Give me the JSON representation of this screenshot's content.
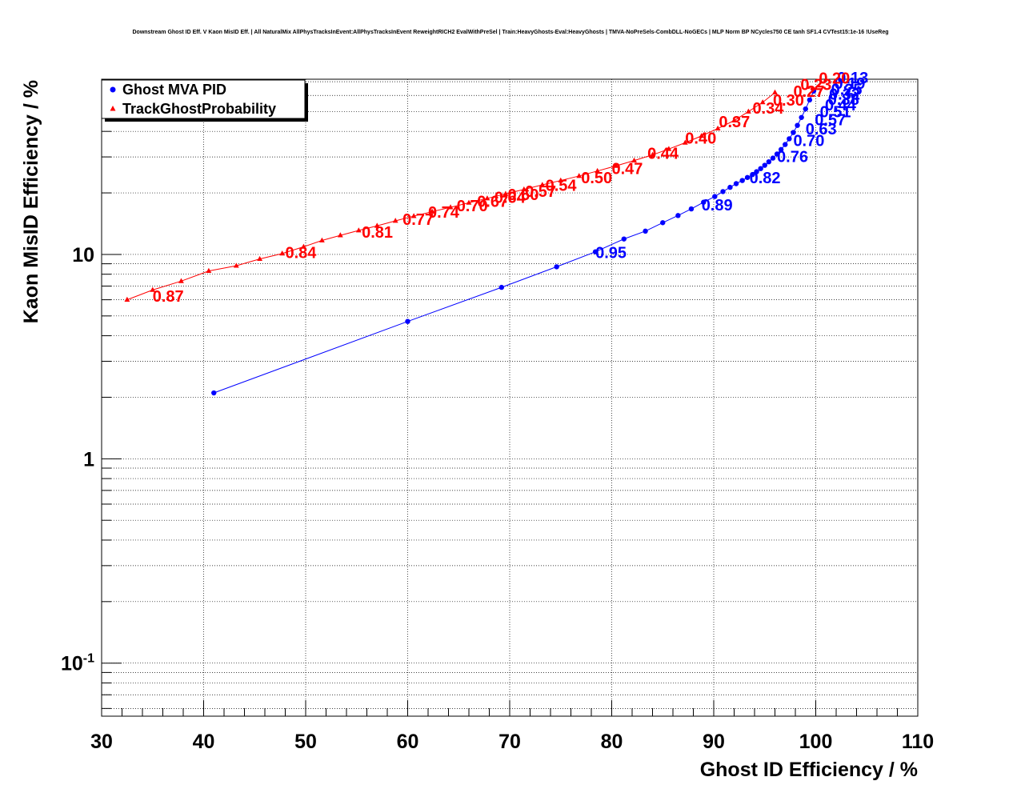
{
  "chart_data": {
    "type": "scatter",
    "title": "Downstream Ghost ID Eff. V Kaon MisID Eff. | All NaturalMix AllPhysTracksInEvent:AllPhysTracksInEvent ReweightRICH2 EvalWithPreSel | Train:HeavyGhosts-Eval:HeavyGhosts | TMVA-NoPreSels-CombDLL-NoGECs | MLP Norm BP NCycles750 CE tanh SF1.4 CVTest15:1e-16 !UseReg",
    "xlabel": "Ghost ID Efficiency / %",
    "ylabel": "Kaon MisID Efficiency / %",
    "xlim": [
      30,
      110
    ],
    "ylim": [
      0.055,
      72
    ],
    "ylog": true,
    "grid": true,
    "legend_position": "top-left",
    "x_ticks": [
      "30",
      "40",
      "50",
      "60",
      "70",
      "80",
      "90",
      "100",
      "110"
    ],
    "y_ticks": [
      {
        "value": 10,
        "base": "10",
        "exp": ""
      },
      {
        "value": 1,
        "base": "1",
        "exp": ""
      },
      {
        "value": 0.1,
        "base": "10",
        "exp": "-1"
      }
    ],
    "series": [
      {
        "name": "Ghost MVA PID",
        "color": "#0000ff",
        "marker": "circle",
        "x": [
          41.0,
          60.0,
          69.2,
          74.6,
          78.4,
          81.2,
          83.3,
          85.0,
          86.5,
          87.8,
          89.0,
          90.1,
          90.9,
          91.6,
          92.2,
          92.8,
          93.3,
          93.8,
          94.2,
          94.6,
          95.0,
          95.4,
          95.8,
          96.2,
          96.6,
          97.0,
          97.4,
          97.8,
          98.2,
          98.6,
          99.0,
          99.4,
          99.8
        ],
        "y": [
          2.1,
          4.7,
          6.9,
          8.7,
          10.3,
          11.9,
          13.0,
          14.3,
          15.5,
          16.7,
          18.0,
          19.2,
          20.3,
          21.3,
          22.2,
          23.0,
          23.8,
          24.6,
          25.4,
          26.3,
          27.3,
          28.4,
          29.6,
          31.0,
          32.6,
          34.5,
          36.8,
          39.5,
          42.8,
          46.8,
          51.5,
          57.0,
          63.0
        ],
        "annotations": [
          {
            "x": 78.4,
            "y": 10.3,
            "label": "0.95"
          },
          {
            "x": 88.8,
            "y": 17.6,
            "label": "0.89"
          },
          {
            "x": 93.5,
            "y": 24.0,
            "label": "0.82"
          },
          {
            "x": 96.2,
            "y": 30.5,
            "label": "0.76"
          },
          {
            "x": 97.8,
            "y": 36.5,
            "label": "0.70"
          },
          {
            "x": 99.0,
            "y": 41.5,
            "label": "0.63"
          },
          {
            "x": 99.9,
            "y": 46.0,
            "label": "0.57"
          },
          {
            "x": 100.4,
            "y": 50.5,
            "label": "0.51"
          },
          {
            "x": 100.9,
            "y": 54.5,
            "label": "0.44"
          },
          {
            "x": 101.2,
            "y": 58.0,
            "label": "0.38"
          },
          {
            "x": 101.3,
            "y": 61.5,
            "label": "0.32"
          },
          {
            "x": 101.5,
            "y": 65.0,
            "label": "0.25"
          },
          {
            "x": 101.8,
            "y": 69.5,
            "label": "0.19"
          },
          {
            "x": 102.1,
            "y": 74.0,
            "label": "0.13"
          }
        ]
      },
      {
        "name": "TrackGhostProbability",
        "color": "#ff0000",
        "marker": "triangle",
        "x": [
          32.5,
          35.0,
          37.8,
          40.5,
          43.2,
          45.5,
          47.7,
          49.8,
          51.6,
          53.4,
          55.2,
          57.0,
          58.8,
          60.6,
          62.4,
          64.2,
          66.0,
          67.8,
          69.6,
          71.4,
          73.2,
          75.0,
          76.8,
          78.6,
          80.4,
          82.2,
          84.0,
          85.6,
          87.2,
          88.8,
          90.4,
          92.0,
          93.4,
          94.8,
          96.0
        ],
        "y": [
          6.0,
          6.7,
          7.4,
          8.3,
          8.8,
          9.5,
          10.1,
          10.9,
          11.7,
          12.4,
          13.1,
          13.8,
          14.6,
          15.4,
          16.2,
          17.0,
          17.9,
          18.8,
          19.8,
          20.8,
          21.9,
          23.0,
          24.2,
          25.6,
          27.1,
          28.8,
          30.7,
          32.8,
          35.2,
          38.0,
          41.3,
          45.2,
          50.0,
          55.5,
          62.0
        ],
        "annotations": [
          {
            "x": 35.0,
            "y": 6.3,
            "label": "0.87"
          },
          {
            "x": 48.0,
            "y": 10.3,
            "label": "0.84"
          },
          {
            "x": 55.5,
            "y": 13.0,
            "label": "0.81"
          },
          {
            "x": 59.5,
            "y": 15.0,
            "label": "0.77"
          },
          {
            "x": 62.0,
            "y": 16.3,
            "label": "0.74"
          },
          {
            "x": 64.8,
            "y": 17.5,
            "label": "0.70"
          },
          {
            "x": 66.8,
            "y": 18.4,
            "label": "0.67"
          },
          {
            "x": 68.5,
            "y": 19.2,
            "label": "0.64"
          },
          {
            "x": 69.8,
            "y": 19.8,
            "label": "0.60"
          },
          {
            "x": 71.5,
            "y": 20.6,
            "label": "0.57"
          },
          {
            "x": 73.5,
            "y": 22.0,
            "label": "0.54"
          },
          {
            "x": 77.0,
            "y": 24.0,
            "label": "0.50"
          },
          {
            "x": 80.0,
            "y": 26.6,
            "label": "0.47"
          },
          {
            "x": 83.5,
            "y": 31.5,
            "label": "0.44"
          },
          {
            "x": 87.2,
            "y": 37.5,
            "label": "0.40"
          },
          {
            "x": 90.5,
            "y": 45.0,
            "label": "0.37"
          },
          {
            "x": 93.8,
            "y": 52.5,
            "label": "0.34"
          },
          {
            "x": 95.8,
            "y": 57.5,
            "label": "0.30"
          },
          {
            "x": 97.8,
            "y": 63.5,
            "label": "0.27"
          },
          {
            "x": 98.5,
            "y": 68.5,
            "label": "0.23"
          },
          {
            "x": 100.3,
            "y": 73.5,
            "label": "0.20"
          }
        ]
      }
    ]
  }
}
